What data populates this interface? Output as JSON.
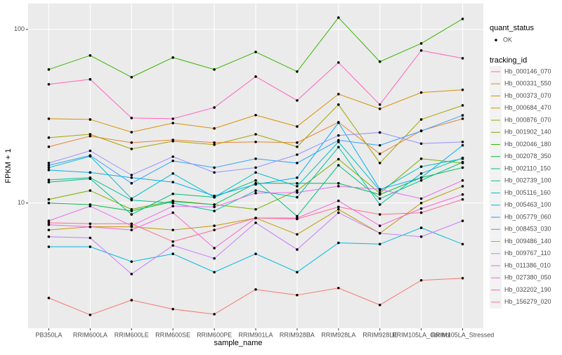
{
  "chart_data": {
    "type": "line",
    "x_label": "sample_name",
    "y_label": "FPKM + 1",
    "categories": [
      "PB350LA",
      "RRIM600LA",
      "RRIM600LE",
      "RRIM600SE",
      "RRIM600PE",
      "RRIM901LA",
      "RRIM928BA",
      "RRIM928LA",
      "RRIM928LE",
      "RRIM105LA_Control",
      "RRIM105LA_Stressed"
    ],
    "log_y": true,
    "ylim": [
      1.9,
      141
    ],
    "yticks": [
      10,
      100
    ],
    "grid": true,
    "legend_position": "right",
    "shape_legend_title": "quant_status",
    "shape_legend_items": [
      "OK"
    ],
    "point_color": "#000000",
    "legend_title": "tracking_id",
    "series": [
      {
        "name": "Hb_000146_070",
        "color": "#F8766D",
        "values": [
          2.84,
          2.27,
          2.76,
          2.45,
          2.29,
          3.18,
          2.95,
          3.24,
          2.59,
          3.59,
          3.69
        ]
      },
      {
        "name": "Hb_000331_550",
        "color": "#EA8331",
        "values": [
          21.1,
          24.3,
          22.3,
          23.1,
          22.3,
          22.5,
          22.3,
          29.2,
          19.2,
          26.1,
          30.6
        ]
      },
      {
        "name": "Hb_000373_070",
        "color": "#D89000",
        "values": [
          30.6,
          30.3,
          25.6,
          28.9,
          26.9,
          32.1,
          27.6,
          42.4,
          34.9,
          43.3,
          44.9
        ]
      },
      {
        "name": "Hb_000684_470",
        "color": "#C09B00",
        "values": [
          7,
          7.3,
          7.3,
          7,
          7.4,
          8.2,
          6.6,
          9.2,
          6.7,
          10,
          12.5
        ]
      },
      {
        "name": "Hb_000876_070",
        "color": "#A3A500",
        "values": [
          23.8,
          24.9,
          20.5,
          22.7,
          21.7,
          24.9,
          21.1,
          36.9,
          17.0,
          30.3,
          36.5
        ]
      },
      {
        "name": "Hb_001902_140",
        "color": "#7CAE00",
        "values": [
          10.5,
          11.8,
          9.2,
          10.3,
          9.8,
          9.2,
          11.8,
          17.9,
          11.4,
          18.0,
          17.0
        ]
      },
      {
        "name": "Hb_002046_180",
        "color": "#39B600",
        "values": [
          58.8,
          70.8,
          53.1,
          68.9,
          58.8,
          74.2,
          57.2,
          117,
          65.2,
          83.0,
          115
        ]
      },
      {
        "name": "Hb_002078_350",
        "color": "#00BB4E",
        "values": [
          10,
          9.8,
          9.0,
          10.2,
          9.8,
          13.0,
          13.0,
          13.0,
          11.2,
          14.0,
          16.0
        ]
      },
      {
        "name": "Hb_002110_150",
        "color": "#00BF7D",
        "values": [
          13.2,
          13.8,
          8.6,
          11.3,
          10.8,
          13.5,
          8.4,
          16.5,
          10.6,
          13.5,
          17.2
        ]
      },
      {
        "name": "Hb_002739_100",
        "color": "#00C1A3",
        "values": [
          13.6,
          14.0,
          10.4,
          10.0,
          9.0,
          11.8,
          10.8,
          21.0,
          9.8,
          14.8,
          18.2
        ]
      },
      {
        "name": "Hb_005116_160",
        "color": "#00BFC4",
        "values": [
          16.0,
          18.6,
          10.6,
          14.8,
          10.8,
          15.0,
          12.5,
          22.5,
          11.8,
          16.2,
          18.0
        ]
      },
      {
        "name": "Hb_005463_100",
        "color": "#00BAE0",
        "values": [
          5.6,
          5.6,
          4.6,
          5.1,
          4.0,
          5.1,
          4.0,
          5.9,
          5.8,
          7.2,
          5.8
        ]
      },
      {
        "name": "Hb_005779_060",
        "color": "#00B0F6",
        "values": [
          15.5,
          15.0,
          14.0,
          13.2,
          11.0,
          12.8,
          14.0,
          29.0,
          12.0,
          14.0,
          21.5
        ]
      },
      {
        "name": "Hb_008453_030",
        "color": "#35A2FF",
        "values": [
          16.5,
          18.8,
          13.0,
          17.5,
          16.0,
          18.0,
          17.0,
          23.0,
          21.5,
          26.0,
          32.0
        ]
      },
      {
        "name": "Hb_009486_140",
        "color": "#9590FF",
        "values": [
          17.0,
          20.0,
          14.5,
          18.5,
          15.0,
          16.0,
          19.0,
          24.5,
          25.5,
          22.0,
          22.5
        ]
      },
      {
        "name": "Hb_009767_110",
        "color": "#C77CFF",
        "values": [
          6.4,
          6.3,
          3.9,
          5.7,
          4.8,
          7.7,
          5.4,
          8.8,
          6.7,
          6.4,
          7.9
        ]
      },
      {
        "name": "Hb_011386_010",
        "color": "#E76BF3",
        "values": [
          7.9,
          9.6,
          7.4,
          9.6,
          9.5,
          11.4,
          11.5,
          12.5,
          12.0,
          10.6,
          13.5
        ]
      },
      {
        "name": "Hb_027380_050",
        "color": "#FA62DB",
        "values": [
          7.5,
          7.3,
          7.0,
          8.8,
          5.5,
          8.2,
          8.2,
          10.3,
          7.4,
          9.3,
          11.2
        ]
      },
      {
        "name": "Hb_032202_190",
        "color": "#FF62BC",
        "values": [
          48.3,
          51.6,
          30.9,
          30.6,
          35.5,
          53.5,
          39.0,
          64.5,
          36.9,
          75.6,
          68.2
        ]
      },
      {
        "name": "Hb_156279_020",
        "color": "#FF6C90",
        "values": [
          7.7,
          7.6,
          7.6,
          6.0,
          7.0,
          8.2,
          8.1,
          9.5,
          8.6,
          8.8,
          10.5
        ]
      }
    ]
  }
}
